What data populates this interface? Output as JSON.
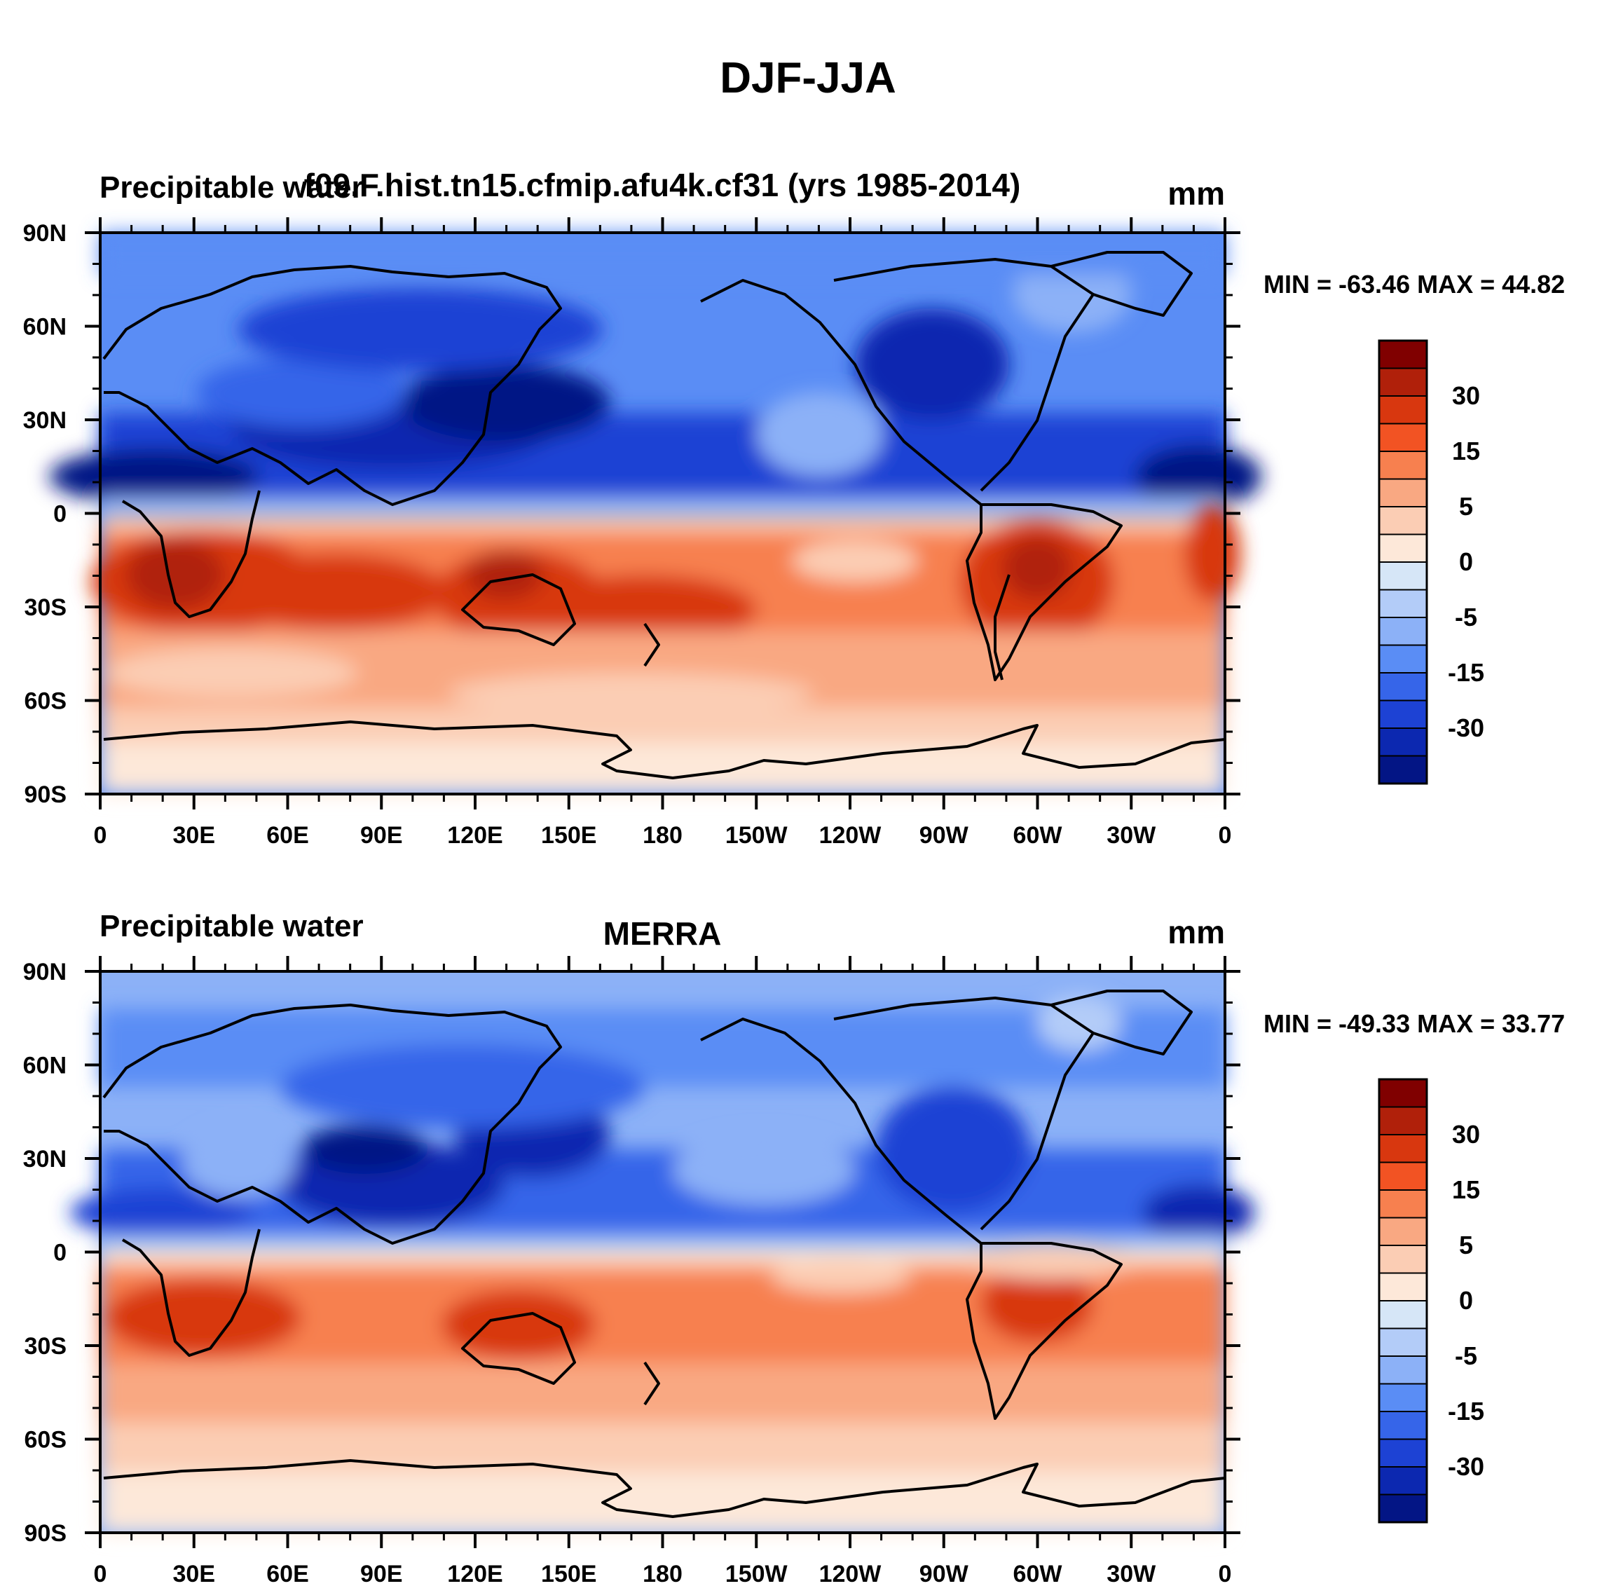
{
  "figure": {
    "title": "DJF-JJA"
  },
  "chart_data": [
    {
      "type": "heatmap",
      "variable": "Precipitable water",
      "case": "f09.F.hist.tn15.cfmip.afu4k.cf31 (yrs 1985-2014)",
      "units": "mm",
      "min_max_label": "MIN = -63.46 MAX =  44.82",
      "min": -63.46,
      "max": 44.82,
      "xticks": [
        "0",
        "30E",
        "60E",
        "90E",
        "120E",
        "150E",
        "180",
        "150W",
        "120W",
        "90W",
        "60W",
        "30W",
        "0"
      ],
      "yticks": [
        "90N",
        "60N",
        "30N",
        "0",
        "30S",
        "60S",
        "90S"
      ],
      "xlim": [
        0,
        360
      ],
      "ylim": [
        -90,
        90
      ]
    },
    {
      "type": "heatmap",
      "variable": "Precipitable water",
      "case": "MERRA",
      "units": "mm",
      "min_max_label": "MIN = -49.33 MAX =  33.77",
      "min": -49.33,
      "max": 33.77,
      "xticks": [
        "0",
        "30E",
        "60E",
        "90E",
        "120E",
        "150E",
        "180",
        "150W",
        "120W",
        "90W",
        "60W",
        "30W",
        "0"
      ],
      "yticks": [
        "90N",
        "60N",
        "30N",
        "0",
        "30S",
        "60S",
        "90S"
      ],
      "xlim": [
        0,
        360
      ],
      "ylim": [
        -90,
        90
      ]
    }
  ],
  "colorbar": {
    "colors": [
      "#800000",
      "#b0200a",
      "#d8370f",
      "#f25323",
      "#f7804f",
      "#f9a882",
      "#fbcdb4",
      "#fde8d9",
      "#d6e6f7",
      "#b3ccf8",
      "#8cb1f7",
      "#5a8df5",
      "#3665e9",
      "#1d42d4",
      "#0c28b0",
      "#031585"
    ],
    "labels": [
      "30",
      "15",
      "5",
      "0",
      "-5",
      "-15",
      "-30"
    ]
  }
}
